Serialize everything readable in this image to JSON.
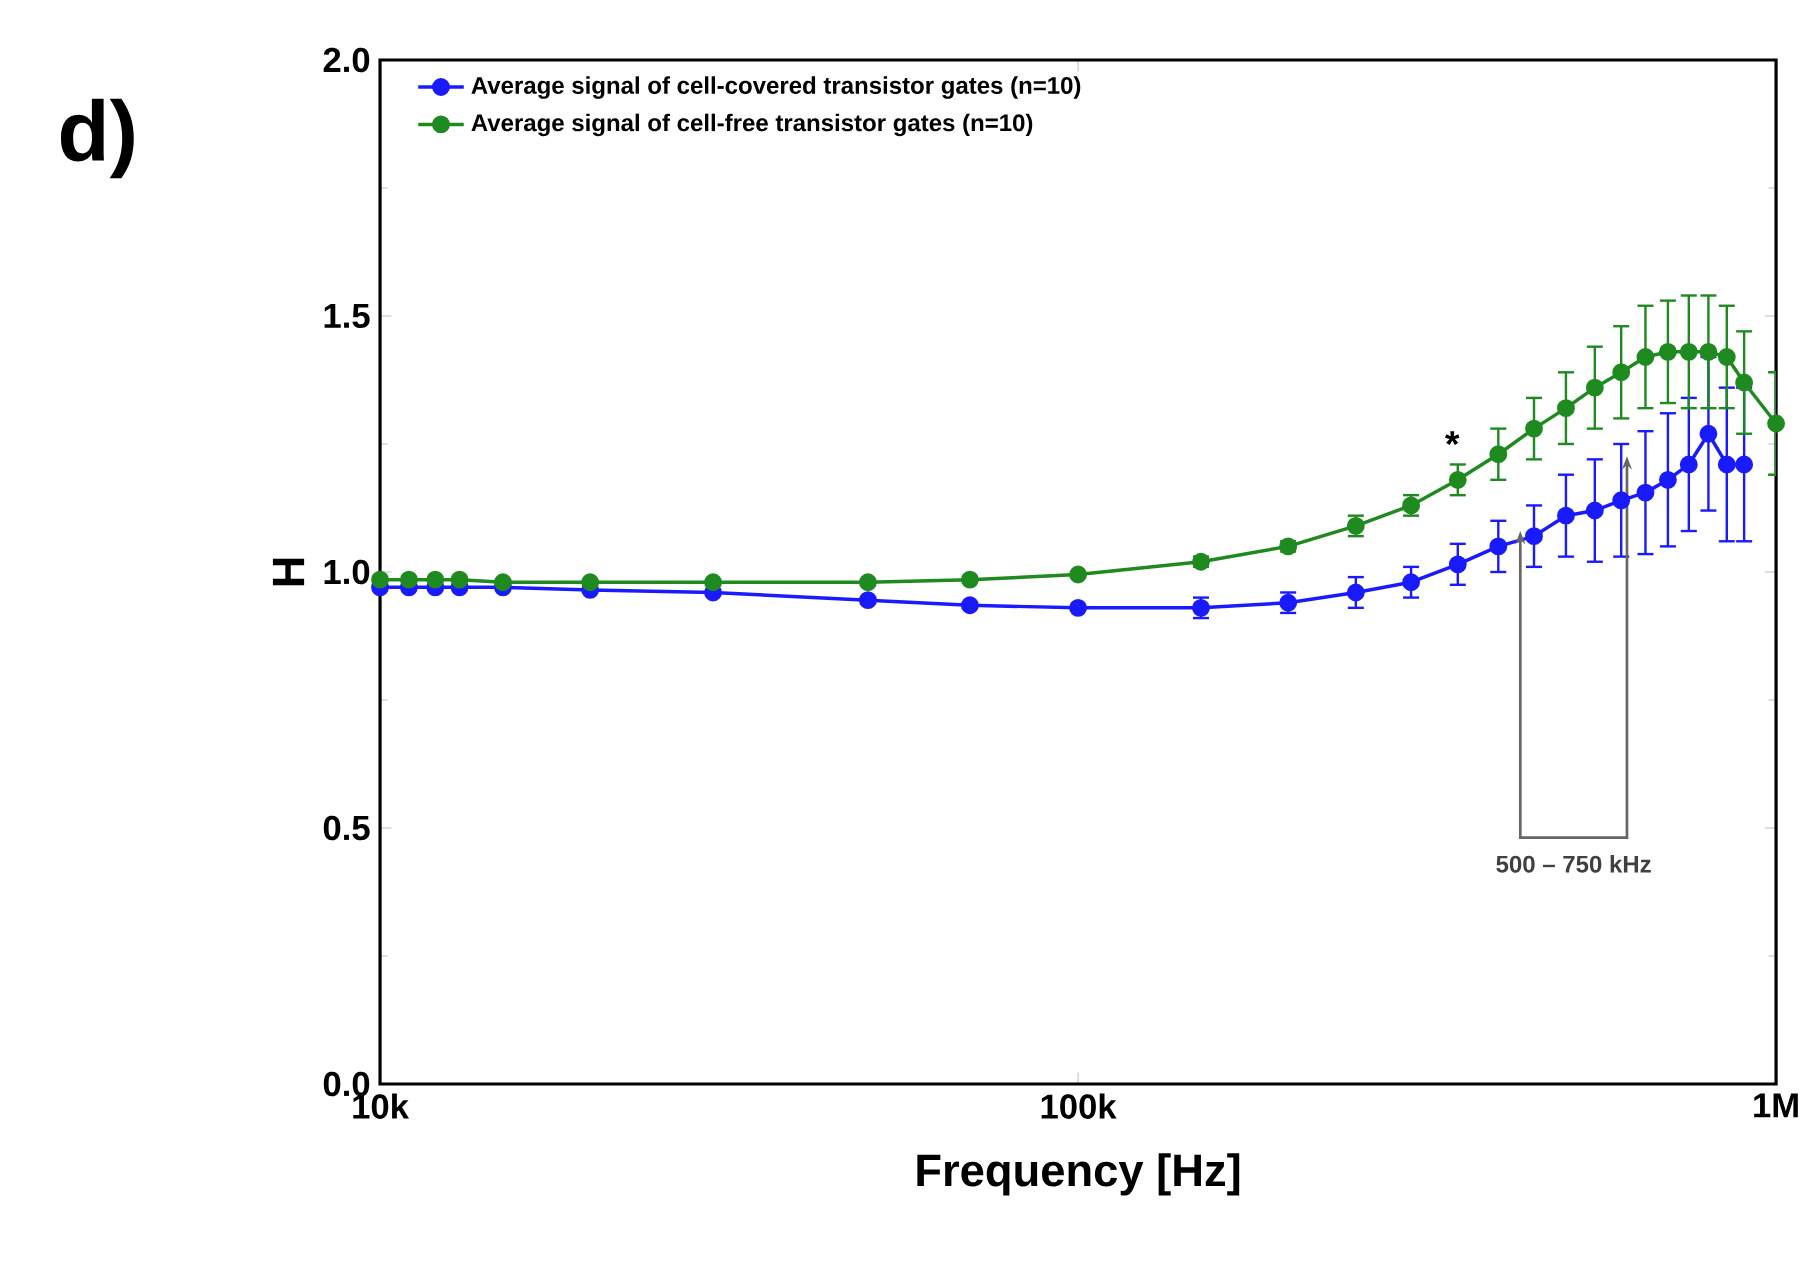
{
  "chart_data": {
    "type": "line",
    "xlabel": "Frequency [Hz]",
    "ylabel": "H",
    "x": [
      10000,
      11000,
      12000,
      13000,
      15000,
      20000,
      30000,
      50000,
      70000,
      100000,
      150000,
      200000,
      250000,
      300000,
      350000,
      400000,
      450000,
      500000,
      550000,
      600000,
      650000,
      700000,
      750000,
      800000,
      850000,
      900000,
      1000000
    ],
    "series": [
      {
        "name": "Average signal of cell-covered transistor gates (n=10)",
        "color": "#1a1aff",
        "values": [
          0.97,
          0.97,
          0.97,
          0.97,
          0.97,
          0.965,
          0.96,
          0.945,
          0.935,
          0.93,
          0.93,
          0.94,
          0.96,
          0.98,
          1.015,
          1.05,
          1.07,
          1.11,
          1.12,
          1.14,
          1.155,
          1.18,
          1.21,
          1.27,
          1.21,
          1.21,
          null
        ],
        "errors": [
          null,
          null,
          null,
          null,
          null,
          null,
          null,
          null,
          null,
          null,
          0.02,
          0.02,
          0.03,
          0.03,
          0.04,
          0.05,
          0.06,
          0.08,
          0.1,
          0.11,
          0.12,
          0.13,
          0.13,
          0.15,
          0.15,
          0.15,
          null
        ]
      },
      {
        "name": "Average signal of cell-free transistor gates (n=10)",
        "color": "#1f8a1f",
        "values": [
          0.985,
          0.985,
          0.985,
          0.985,
          0.98,
          0.98,
          0.98,
          0.98,
          0.985,
          0.995,
          1.02,
          1.05,
          1.09,
          1.13,
          1.18,
          1.23,
          1.28,
          1.32,
          1.36,
          1.39,
          1.42,
          1.43,
          1.43,
          1.43,
          1.42,
          1.37,
          1.29
        ],
        "errors": [
          null,
          null,
          null,
          null,
          null,
          null,
          null,
          null,
          null,
          null,
          0.01,
          0.01,
          0.02,
          0.02,
          0.03,
          0.05,
          0.06,
          0.07,
          0.08,
          0.09,
          0.1,
          0.1,
          0.11,
          0.11,
          0.1,
          0.1,
          0.1
        ]
      }
    ],
    "xlim": [
      10000,
      1000000
    ],
    "ylim": [
      0,
      2
    ],
    "xticks": [
      {
        "value": 10000,
        "label": "10k"
      },
      {
        "value": 100000,
        "label": "100k"
      },
      {
        "value": 1000000,
        "label": "1M"
      }
    ],
    "yticks": [
      {
        "value": 0,
        "label": "0.0"
      },
      {
        "value": 0.5,
        "label": "0.5"
      },
      {
        "value": 1,
        "label": "1.0"
      },
      {
        "value": 1.5,
        "label": "1.5"
      },
      {
        "value": 2,
        "label": "2.0"
      }
    ],
    "log": "x",
    "grid": false,
    "legend": "top left",
    "marker": "circle",
    "line_style": "solid",
    "annotations": [
      "d)",
      "*",
      "500 – 750 kHz"
    ]
  }
}
